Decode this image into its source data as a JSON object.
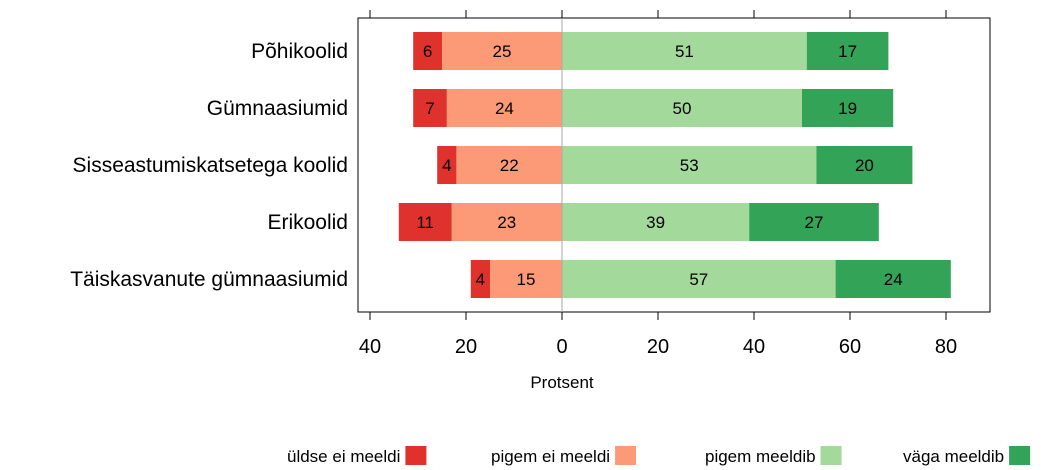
{
  "chart_data": {
    "type": "bar",
    "orientation": "horizontal",
    "stacking": "diverging",
    "categories": [
      "Põhikoolid",
      "Gümnaasiumid",
      "Sisseastumiskatsetega koolid",
      "Erikoolid",
      "Täiskasvanute gümnaasiumid"
    ],
    "series": [
      {
        "name": "üldse ei meeldi",
        "side": "negative",
        "color": "#e0322d",
        "values": [
          6,
          7,
          4,
          11,
          4
        ]
      },
      {
        "name": "pigem ei meeldi",
        "side": "negative",
        "color": "#fc9a78",
        "values": [
          25,
          24,
          22,
          23,
          15
        ]
      },
      {
        "name": "pigem meeldib",
        "side": "positive",
        "color": "#a3d99b",
        "values": [
          51,
          50,
          53,
          39,
          57
        ]
      },
      {
        "name": "väga meeldib",
        "side": "positive",
        "color": "#33a357",
        "values": [
          17,
          19,
          20,
          27,
          24
        ]
      }
    ],
    "xlabel": "Protsent",
    "xlim": [
      -42,
      90
    ],
    "xticks": [
      -40,
      -20,
      0,
      20,
      40,
      60,
      80
    ],
    "xtick_labels": [
      "40",
      "20",
      "0",
      "20",
      "40",
      "60",
      "80"
    ],
    "legend_position": "bottom",
    "grid": false
  }
}
